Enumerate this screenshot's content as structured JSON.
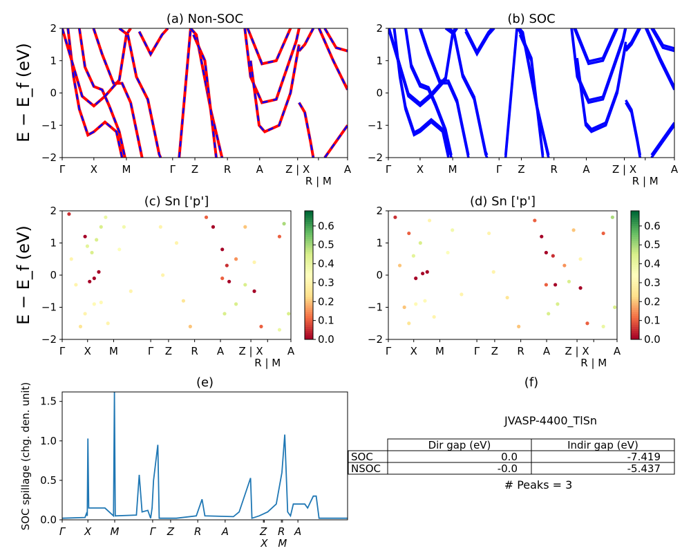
{
  "chart_data": [
    {
      "panel": "a",
      "type": "line",
      "title": "(a) Non-SOC",
      "ylabel": "E − E_f (eV)",
      "ylim": [
        -2,
        2
      ],
      "yticks": [
        "−2",
        "−1",
        "0",
        "1",
        "2"
      ],
      "xticks": [
        {
          "pos": 0,
          "label": "Γ"
        },
        {
          "pos": 0.111,
          "label": "X"
        },
        {
          "pos": 0.225,
          "label": "M"
        },
        {
          "pos": 0.387,
          "label": "Γ"
        },
        {
          "pos": 0.465,
          "label": "Z"
        },
        {
          "pos": 0.579,
          "label": "R"
        },
        {
          "pos": 0.692,
          "label": "A"
        },
        {
          "pos": 0.825,
          "label": "Z | X"
        },
        {
          "pos": 0.898,
          "label": "R | M"
        },
        {
          "pos": 1,
          "label": "A"
        }
      ],
      "colors": [
        "#ff0000",
        "#0000ff"
      ],
      "bands": [
        [
          [
            0.02,
            2
          ],
          [
            0.04,
            0.5
          ],
          [
            0.06,
            -0.5
          ],
          [
            0.09,
            -1.3
          ],
          [
            0.111,
            -1.2
          ],
          [
            0.15,
            -0.9
          ],
          [
            0.19,
            -1.2
          ],
          [
            0.21,
            -2
          ]
        ],
        [
          [
            0.06,
            2
          ],
          [
            0.08,
            0.8
          ],
          [
            0.111,
            0.2
          ],
          [
            0.14,
            0.1
          ],
          [
            0.165,
            -0.4
          ],
          [
            0.2,
            -1.2
          ],
          [
            0.22,
            -2
          ]
        ],
        [
          [
            0.11,
            2
          ],
          [
            0.14,
            1.2
          ],
          [
            0.18,
            0.3
          ],
          [
            0.21,
            0.3
          ],
          [
            0.24,
            -0.3
          ],
          [
            0.28,
            -2
          ]
        ],
        [
          [
            0.0,
            2
          ],
          [
            0.07,
            -0.1
          ],
          [
            0.111,
            -0.4
          ],
          [
            0.15,
            -0.1
          ],
          [
            0.2,
            0.4
          ],
          [
            0.225,
            1.8
          ],
          [
            0.24,
            2
          ]
        ],
        [
          [
            0.2,
            2
          ],
          [
            0.23,
            1.8
          ],
          [
            0.26,
            0.5
          ],
          [
            0.3,
            -0.2
          ],
          [
            0.34,
            -1.9
          ],
          [
            0.345,
            -2
          ]
        ],
        [
          [
            0.27,
            1.9
          ],
          [
            0.31,
            1.2
          ],
          [
            0.35,
            1.8
          ],
          [
            0.37,
            2
          ]
        ],
        [
          [
            0.41,
            -2
          ],
          [
            0.43,
            0
          ],
          [
            0.45,
            2
          ]
        ],
        [
          [
            0.45,
            2
          ],
          [
            0.47,
            1.8
          ],
          [
            0.52,
            -0.5
          ],
          [
            0.56,
            -2
          ]
        ],
        [
          [
            0.46,
            1.8
          ],
          [
            0.5,
            1.0
          ],
          [
            0.54,
            -2
          ]
        ],
        [
          [
            0.64,
            2
          ],
          [
            0.66,
            0.5
          ],
          [
            0.7,
            -0.3
          ],
          [
            0.75,
            -0.2
          ],
          [
            0.82,
            1.6
          ],
          [
            0.83,
            2
          ]
        ],
        [
          [
            0.66,
            1.0
          ],
          [
            0.69,
            -1.0
          ],
          [
            0.71,
            -1.2
          ],
          [
            0.76,
            -1
          ],
          [
            0.8,
            0
          ],
          [
            0.83,
            1.5
          ]
        ],
        [
          [
            0.65,
            2
          ],
          [
            0.7,
            0.9
          ],
          [
            0.75,
            1.0
          ],
          [
            0.8,
            2
          ]
        ],
        [
          [
            0.83,
            1.3
          ],
          [
            0.85,
            1.5
          ],
          [
            0.88,
            2
          ]
        ],
        [
          [
            0.83,
            -0.3
          ],
          [
            0.85,
            -0.6
          ],
          [
            0.87,
            -1.5
          ],
          [
            0.88,
            -2
          ]
        ],
        [
          [
            0.9,
            2
          ],
          [
            0.95,
            1.0
          ],
          [
            1,
            0.1
          ]
        ],
        [
          [
            0.92,
            -2
          ],
          [
            0.96,
            -1.5
          ],
          [
            1,
            -1
          ]
        ],
        [
          [
            0.92,
            2
          ],
          [
            0.96,
            1.4
          ],
          [
            1,
            1.3
          ]
        ]
      ]
    },
    {
      "panel": "b",
      "type": "line",
      "title": "(b) SOC",
      "ylim": [
        -2,
        2
      ],
      "colors": [
        "#0000ff"
      ]
    },
    {
      "panel": "c",
      "type": "scatter",
      "title": "(c)  Sn ['p']",
      "ylabel": "E − E_f (eV)",
      "ylim": [
        -2,
        2
      ],
      "colorbar": {
        "ticks": [
          "0.0",
          "0.1",
          "0.2",
          "0.3",
          "0.4",
          "0.5",
          "0.6"
        ],
        "range": [
          0,
          0.68
        ],
        "colormap": "RdYlGn"
      },
      "points": [
        [
          0.03,
          1.9,
          0.05
        ],
        [
          0.1,
          1.2,
          0.0
        ],
        [
          0.11,
          0.9,
          0.42
        ],
        [
          0.13,
          0.7,
          0.45
        ],
        [
          0.15,
          1.1,
          0.45
        ],
        [
          0.17,
          1.5,
          0.45
        ],
        [
          0.19,
          1.8,
          0.4
        ],
        [
          0.12,
          -0.2,
          0.0
        ],
        [
          0.14,
          -0.1,
          0.0
        ],
        [
          0.16,
          0.1,
          0.0
        ],
        [
          0.08,
          -1.6,
          0.25
        ],
        [
          0.1,
          -1.2,
          0.3
        ],
        [
          0.14,
          -0.9,
          0.32
        ],
        [
          0.17,
          -0.85,
          0.32
        ],
        [
          0.2,
          -1.5,
          0.3
        ],
        [
          0.04,
          0.5,
          0.3
        ],
        [
          0.06,
          -0.3,
          0.3
        ],
        [
          0.25,
          0.8,
          0.35
        ],
        [
          0.27,
          1.5,
          0.38
        ],
        [
          0.3,
          -0.5,
          0.3
        ],
        [
          0.43,
          1.5,
          0.3
        ],
        [
          0.44,
          0,
          0.3
        ],
        [
          0.5,
          1.0,
          0.3
        ],
        [
          0.53,
          -0.8,
          0.25
        ],
        [
          0.56,
          -1.6,
          0.2
        ],
        [
          0.63,
          1.8,
          0.1
        ],
        [
          0.66,
          1.5,
          0.0
        ],
        [
          0.7,
          0.8,
          0.0
        ],
        [
          0.72,
          0.3,
          0.05
        ],
        [
          0.7,
          -0.1,
          0.1
        ],
        [
          0.73,
          -0.2,
          0.0
        ],
        [
          0.76,
          0.5,
          0.15
        ],
        [
          0.8,
          1.5,
          0.2
        ],
        [
          0.71,
          -1.2,
          0.45
        ],
        [
          0.76,
          -0.9,
          0.45
        ],
        [
          0.8,
          -0.3,
          0.45
        ],
        [
          0.84,
          0.4,
          0.3
        ],
        [
          0.84,
          -0.5,
          0.0
        ],
        [
          0.87,
          -1.6,
          0.1
        ],
        [
          0.95,
          1.2,
          0.1
        ],
        [
          0.97,
          1.6,
          0.5
        ],
        [
          0.99,
          -1.2,
          0.45
        ],
        [
          0.95,
          -1.7,
          0.4
        ]
      ]
    },
    {
      "panel": "d",
      "type": "scatter",
      "title": "(d) Sn ['p']",
      "ylim": [
        -2,
        2
      ],
      "colorbar": {
        "ticks": [
          "0.0",
          "0.1",
          "0.2",
          "0.3",
          "0.4",
          "0.5",
          "0.6"
        ],
        "range": [
          0,
          0.68
        ],
        "colormap": "RdYlGn"
      },
      "points": [
        [
          0.03,
          1.8,
          0.05
        ],
        [
          0.09,
          1.3,
          0.1
        ],
        [
          0.11,
          0.6,
          0.42
        ],
        [
          0.14,
          1.0,
          0.45
        ],
        [
          0.18,
          1.7,
          0.3
        ],
        [
          0.12,
          -0.1,
          0.0
        ],
        [
          0.15,
          0.05,
          0.0
        ],
        [
          0.17,
          0.1,
          0.0
        ],
        [
          0.09,
          -1.5,
          0.25
        ],
        [
          0.12,
          -0.9,
          0.32
        ],
        [
          0.16,
          -0.8,
          0.32
        ],
        [
          0.2,
          -1.3,
          0.3
        ],
        [
          0.05,
          0.3,
          0.2
        ],
        [
          0.07,
          -1.0,
          0.2
        ],
        [
          0.26,
          0.7,
          0.35
        ],
        [
          0.28,
          1.4,
          0.38
        ],
        [
          0.32,
          -0.6,
          0.3
        ],
        [
          0.44,
          1.3,
          0.3
        ],
        [
          0.46,
          0.1,
          0.3
        ],
        [
          0.52,
          -0.7,
          0.25
        ],
        [
          0.57,
          -1.6,
          0.2
        ],
        [
          0.64,
          1.7,
          0.1
        ],
        [
          0.67,
          1.2,
          0.0
        ],
        [
          0.69,
          0.7,
          0.0
        ],
        [
          0.72,
          0.6,
          0.05
        ],
        [
          0.69,
          -0.3,
          0.1
        ],
        [
          0.73,
          -0.3,
          0.0
        ],
        [
          0.77,
          0.3,
          0.15
        ],
        [
          0.81,
          1.4,
          0.2
        ],
        [
          0.7,
          -1.2,
          0.45
        ],
        [
          0.74,
          -0.9,
          0.45
        ],
        [
          0.79,
          -0.2,
          0.45
        ],
        [
          0.84,
          0.5,
          0.3
        ],
        [
          0.84,
          -0.4,
          0.0
        ],
        [
          0.87,
          -1.5,
          0.1
        ],
        [
          0.94,
          1.3,
          0.1
        ],
        [
          0.98,
          1.8,
          0.5
        ],
        [
          0.99,
          -1.0,
          0.45
        ],
        [
          0.94,
          -1.6,
          0.4
        ]
      ]
    },
    {
      "panel": "e",
      "type": "line",
      "title": "(e)",
      "ylabel": "SOC spillage (chg. den. unit)",
      "ylim": [
        0,
        1.62
      ],
      "yticks": [
        0,
        0.5,
        1.0,
        1.5
      ],
      "color": "#1f77b4",
      "xticks": [
        {
          "pos": 0,
          "label": "Γ"
        },
        {
          "pos": 0.09,
          "label": "X"
        },
        {
          "pos": 0.184,
          "label": "M"
        },
        {
          "pos": 0.317,
          "label": "Γ"
        },
        {
          "pos": 0.38,
          "label": "Z"
        },
        {
          "pos": 0.475,
          "label": "R"
        },
        {
          "pos": 0.571,
          "label": "A"
        },
        {
          "pos": 0.705,
          "label": "Z"
        },
        {
          "pos": 0.708,
          "label": "X"
        },
        {
          "pos": 0.768,
          "label": "R"
        },
        {
          "pos": 0.772,
          "label": "M"
        },
        {
          "pos": 0.826,
          "label": "A"
        }
      ],
      "values": [
        [
          0,
          0.02
        ],
        [
          0.08,
          0.03
        ],
        [
          0.085,
          0.08
        ],
        [
          0.088,
          0.05
        ],
        [
          0.09,
          1.03
        ],
        [
          0.093,
          0.15
        ],
        [
          0.11,
          0.15
        ],
        [
          0.15,
          0.15
        ],
        [
          0.18,
          0.05
        ],
        [
          0.183,
          1.62
        ],
        [
          0.186,
          0.05
        ],
        [
          0.26,
          0.06
        ],
        [
          0.27,
          0.57
        ],
        [
          0.28,
          0.1
        ],
        [
          0.3,
          0.12
        ],
        [
          0.31,
          0.02
        ],
        [
          0.315,
          0.15
        ],
        [
          0.32,
          0.5
        ],
        [
          0.335,
          0.95
        ],
        [
          0.34,
          0.02
        ],
        [
          0.4,
          0.02
        ],
        [
          0.47,
          0.05
        ],
        [
          0.49,
          0.26
        ],
        [
          0.5,
          0.05
        ],
        [
          0.6,
          0.04
        ],
        [
          0.62,
          0.1
        ],
        [
          0.66,
          0.53
        ],
        [
          0.665,
          0.02
        ],
        [
          0.69,
          0.05
        ],
        [
          0.72,
          0.1
        ],
        [
          0.75,
          0.2
        ],
        [
          0.77,
          0.6
        ],
        [
          0.78,
          1.08
        ],
        [
          0.79,
          0.1
        ],
        [
          0.8,
          0.05
        ],
        [
          0.81,
          0.2
        ],
        [
          0.85,
          0.2
        ],
        [
          0.86,
          0.15
        ],
        [
          0.88,
          0.3
        ],
        [
          0.89,
          0.3
        ],
        [
          0.9,
          0.02
        ],
        [
          0.92,
          0.02
        ],
        [
          1,
          0.02
        ]
      ]
    },
    {
      "panel": "f",
      "type": "table",
      "title": "(f)",
      "subtitle": "JVASP-4400_TlSn",
      "columns": [
        "",
        "Dir gap (eV)",
        "Indir gap (eV)"
      ],
      "rows": [
        [
          "SOC",
          "0.0",
          "-7.419"
        ],
        [
          "NSOC",
          "-0.0",
          "-5.437"
        ]
      ],
      "footer": "# Peaks = 3"
    }
  ]
}
